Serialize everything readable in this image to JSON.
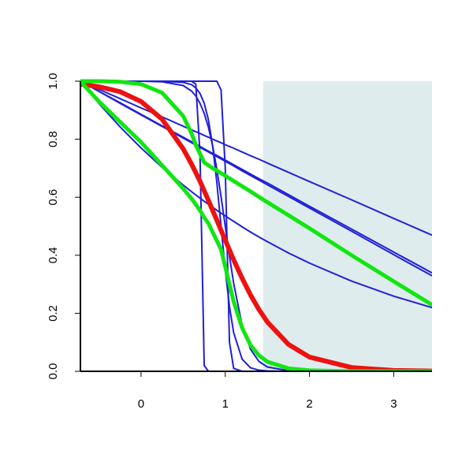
{
  "chart_data": {
    "type": "line",
    "x": [
      -0.72,
      -0.5,
      -0.25,
      0,
      0.25,
      0.5,
      0.6,
      0.65,
      0.7,
      0.75,
      0.8,
      0.85,
      0.9,
      0.95,
      1.0,
      1.05,
      1.1,
      1.2,
      1.3,
      1.4,
      1.5,
      1.75,
      2,
      2.5,
      3,
      3.45
    ],
    "xlim": [
      -0.72,
      3.455
    ],
    "ylim": [
      0,
      1
    ],
    "xticks": [
      0,
      1,
      2,
      3
    ],
    "yticks": [
      {
        "value": 0,
        "label": "0.0"
      },
      0.2,
      0.4,
      0.6,
      0.8,
      {
        "value": 1,
        "label": "1.0"
      }
    ],
    "shaded_x": [
      1.45,
      3.455
    ],
    "shade_color": "#dfeced",
    "series": [
      {
        "color": "#2020d8",
        "width": 2,
        "values": [
          1,
          1,
          1,
          1,
          1,
          1,
          1,
          0.99,
          0.75,
          0.02,
          0,
          0,
          0,
          0,
          0,
          0,
          0,
          0,
          0,
          0,
          0,
          0,
          0,
          0,
          0,
          0
        ]
      },
      {
        "color": "#2020d8",
        "width": 2,
        "values": [
          1,
          1,
          1,
          1,
          1,
          1,
          1,
          1,
          1,
          1,
          1,
          1,
          1,
          0.97,
          0.7,
          0.1,
          0.01,
          0,
          0,
          0,
          0,
          0,
          0,
          0,
          0,
          0
        ]
      },
      {
        "color": "#2020d8",
        "width": 2,
        "values": [
          1,
          1,
          1,
          1,
          1,
          0.996,
          0.988,
          0.977,
          0.958,
          0.924,
          0.867,
          0.777,
          0.651,
          0.5,
          0.349,
          0.223,
          0.133,
          0.042,
          0.012,
          0.004,
          0.001,
          0,
          0,
          0,
          0,
          0
        ]
      },
      {
        "color": "#2020d8",
        "width": 2,
        "values": [
          1,
          1,
          1,
          1,
          0.998,
          0.985,
          0.966,
          0.949,
          0.924,
          0.889,
          0.841,
          0.777,
          0.697,
          0.603,
          0.5,
          0.397,
          0.303,
          0.159,
          0.076,
          0.034,
          0.015,
          0.002,
          0,
          0,
          0,
          0
        ]
      },
      {
        "color": "#2020d8",
        "width": 2,
        "values": [
          1,
          0.972,
          0.94,
          0.908,
          0.877,
          0.845,
          0.832,
          0.826,
          0.82,
          0.813,
          0.807,
          0.8,
          0.794,
          0.788,
          0.781,
          0.775,
          0.769,
          0.756,
          0.743,
          0.731,
          0.718,
          0.686,
          0.654,
          0.591,
          0.527,
          0.47
        ]
      },
      {
        "color": "#2020d8",
        "width": 2,
        "values": [
          1,
          0.965,
          0.926,
          0.886,
          0.846,
          0.807,
          0.791,
          0.783,
          0.775,
          0.767,
          0.759,
          0.751,
          0.744,
          0.736,
          0.728,
          0.72,
          0.712,
          0.696,
          0.68,
          0.664,
          0.649,
          0.609,
          0.569,
          0.49,
          0.411,
          0.34
        ]
      },
      {
        "color": "#2020d8",
        "width": 2,
        "values": [
          1,
          0.965,
          0.924,
          0.884,
          0.844,
          0.804,
          0.788,
          0.78,
          0.772,
          0.764,
          0.756,
          0.748,
          0.74,
          0.732,
          0.724,
          0.716,
          0.708,
          0.691,
          0.675,
          0.659,
          0.643,
          0.603,
          0.563,
          0.483,
          0.402,
          0.33
        ]
      },
      {
        "color": "#2020d8",
        "width": 2,
        "values": [
          1,
          0.923,
          0.843,
          0.77,
          0.703,
          0.642,
          0.619,
          0.608,
          0.597,
          0.586,
          0.576,
          0.566,
          0.555,
          0.545,
          0.536,
          0.526,
          0.517,
          0.498,
          0.48,
          0.463,
          0.447,
          0.408,
          0.373,
          0.311,
          0.259,
          0.22
        ]
      },
      {
        "color": "#ee1111",
        "width": 6,
        "values": [
          0.99,
          0.981,
          0.964,
          0.93,
          0.869,
          0.767,
          0.714,
          0.685,
          0.655,
          0.622,
          0.589,
          0.555,
          0.521,
          0.486,
          0.452,
          0.418,
          0.384,
          0.321,
          0.263,
          0.213,
          0.17,
          0.093,
          0.049,
          0.013,
          0.003,
          0.001
        ]
      },
      {
        "color": "#11e611",
        "width": 5,
        "values": [
          1,
          1,
          0.998,
          0.99,
          0.96,
          0.88,
          0.82,
          0.78,
          0.75,
          0.72,
          0.71,
          0.7,
          0.692,
          0.683,
          0.674,
          0.665,
          0.656,
          0.638,
          0.62,
          0.601,
          0.583,
          0.538,
          0.493,
          0.4,
          0.31,
          0.23
        ]
      },
      {
        "color": "#11e611",
        "width": 5,
        "values": [
          1,
          0.93,
          0.86,
          0.79,
          0.71,
          0.63,
          0.595,
          0.575,
          0.555,
          0.53,
          0.51,
          0.48,
          0.45,
          0.42,
          0.36,
          0.3,
          0.24,
          0.15,
          0.09,
          0.055,
          0.033,
          0.01,
          0.003,
          0,
          0,
          0
        ]
      }
    ]
  }
}
